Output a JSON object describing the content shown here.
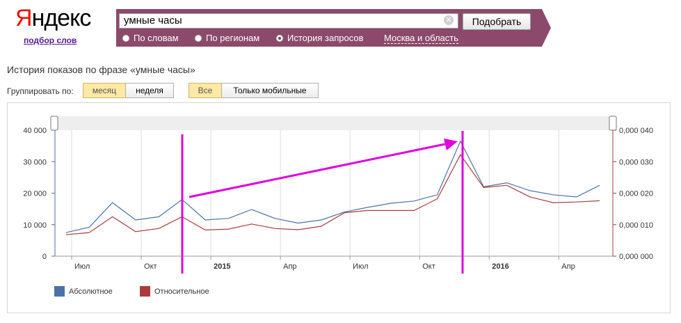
{
  "header": {
    "logo_first": "Я",
    "logo_rest": "ндекс",
    "sublink": "подбор слов"
  },
  "search": {
    "value": "умные часы",
    "submit_label": "Подобрать",
    "modes": [
      {
        "label": "По словам",
        "selected": false
      },
      {
        "label": "По регионам",
        "selected": false
      },
      {
        "label": "История запросов",
        "selected": true
      }
    ],
    "region": "Москва и область"
  },
  "page": {
    "title": "История показов по фразе «умные часы»",
    "group_label": "Группировать по:",
    "group_options": [
      {
        "label": "месяц",
        "selected": true
      },
      {
        "label": "неделя",
        "selected": false
      }
    ],
    "device_options": [
      {
        "label": "Все",
        "selected": true
      },
      {
        "label": "Только мобильные",
        "selected": false
      }
    ]
  },
  "colors": {
    "brand_red": "#e61400",
    "bar": "#8b4a6b",
    "absolute": "#4a72a8",
    "relative": "#aa3b3b",
    "annotation": "#e000e0"
  },
  "chart_data": {
    "type": "line",
    "x_tick_labels": [
      "Июл",
      "Окт",
      "2015",
      "Апр",
      "Июл",
      "Окт",
      "2016",
      "Апр"
    ],
    "y_left_ticks": [
      "0",
      "10 000",
      "20 000",
      "30 000",
      "40 000"
    ],
    "y_right_ticks": [
      "0,000 000",
      "0,000 010",
      "0,000 020",
      "0,000 030",
      "0,000 040"
    ],
    "ylim_left": [
      0,
      40000
    ],
    "ylim_right": [
      0,
      4e-05
    ],
    "series": [
      {
        "name": "Абсолютное",
        "axis": "left",
        "values": [
          7500,
          9200,
          17000,
          11500,
          12500,
          18000,
          11500,
          12000,
          14800,
          12000,
          10500,
          11500,
          14000,
          15500,
          16800,
          17500,
          19500,
          36500,
          22000,
          23300,
          20800,
          19500,
          18800,
          22500
        ]
      },
      {
        "name": "Относительное",
        "axis": "right",
        "values": [
          6.8e-06,
          7.5e-06,
          1.25e-05,
          7.8e-06,
          8.8e-06,
          1.25e-05,
          8.3e-06,
          8.6e-06,
          1.02e-05,
          8.8e-06,
          8.4e-06,
          9.5e-06,
          1.38e-05,
          1.45e-05,
          1.45e-05,
          1.45e-05,
          1.82e-05,
          3.22e-05,
          2.18e-05,
          2.25e-05,
          1.88e-05,
          1.7e-05,
          1.72e-05,
          1.76e-05
        ]
      }
    ],
    "legend_position": "bottom-left",
    "grid": "vertical"
  }
}
